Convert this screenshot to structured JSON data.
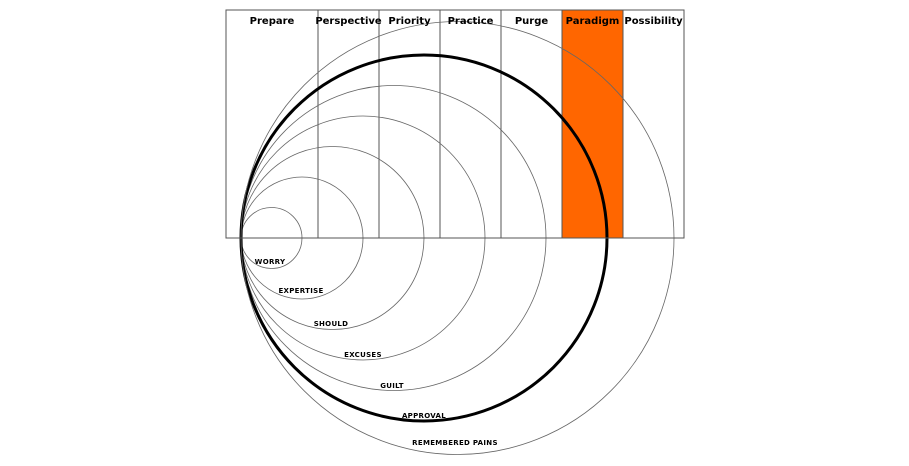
{
  "columns": [
    {
      "label": "Prepare"
    },
    {
      "label": "Perspective"
    },
    {
      "label": "Priority"
    },
    {
      "label": "Practice"
    },
    {
      "label": "Purge"
    },
    {
      "label": "Paradigm",
      "highlight": true
    },
    {
      "label": "Possibility"
    }
  ],
  "rings": [
    {
      "label": "WORRY"
    },
    {
      "label": "EXPERTISE"
    },
    {
      "label": "SHOULD"
    },
    {
      "label": "EXCUSES"
    },
    {
      "label": "GUILT"
    },
    {
      "label": "APPROVAL",
      "highlight": true
    },
    {
      "label": "REMEMBERED PAINS"
    }
  ]
}
